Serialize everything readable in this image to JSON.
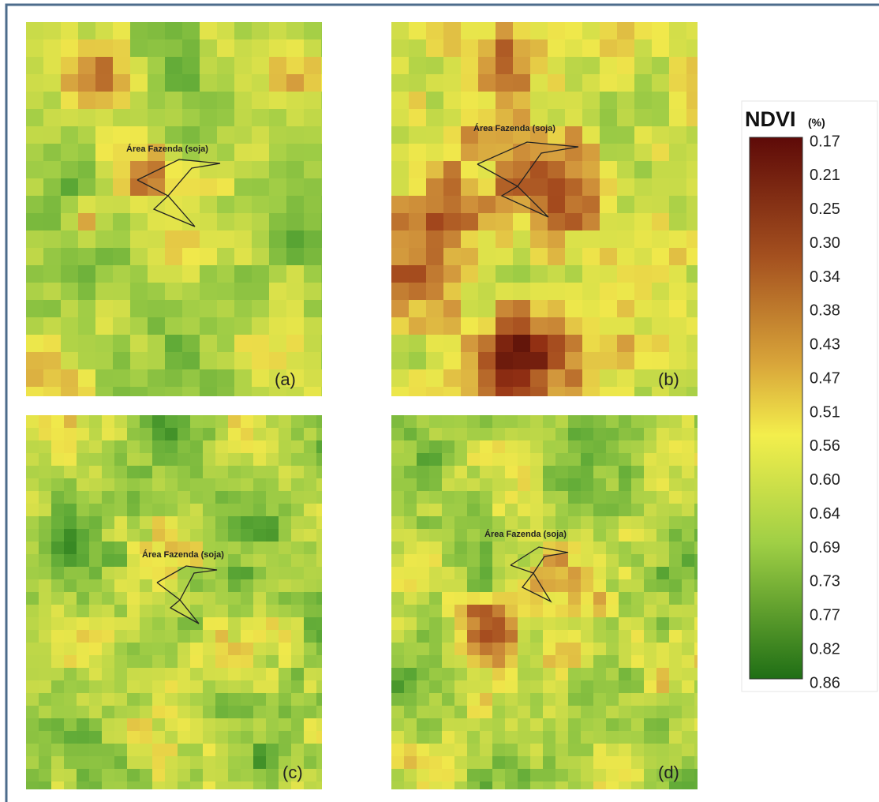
{
  "panels": [
    {
      "label": "(a)",
      "annotation": "Área Fazenda (soja)"
    },
    {
      "label": "(b)",
      "annotation": "Área Fazenda (soja)"
    },
    {
      "label": "(c)",
      "annotation": "Área Fazenda (soja)"
    },
    {
      "label": "(d)",
      "annotation": "Área Fazenda (soja)"
    }
  ],
  "legend": {
    "title": "NDVI",
    "unit": "(%)",
    "ticks": [
      "0.17",
      "0.21",
      "0.25",
      "0.30",
      "0.34",
      "0.38",
      "0.43",
      "0.47",
      "0.51",
      "0.56",
      "0.60",
      "0.64",
      "0.69",
      "0.73",
      "0.77",
      "0.82",
      "0.86"
    ]
  }
}
